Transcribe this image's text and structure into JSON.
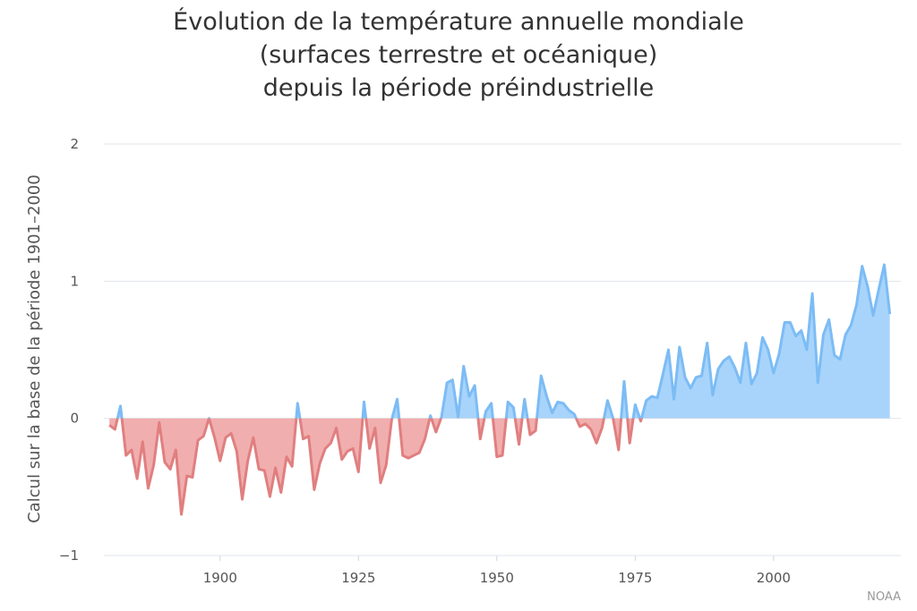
{
  "chart_data": {
    "type": "area",
    "title_lines": [
      "Évolution de la température annuelle mondiale",
      "(surfaces terrestre et océanique)",
      "depuis la période préindustrielle"
    ],
    "xlabel": "",
    "ylabel": "Calcul sur la base de la période 1901–2000",
    "ylim": [
      -1,
      2
    ],
    "yticks": [
      "−1",
      "0",
      "1",
      "2"
    ],
    "xticks": [
      "1900",
      "1925",
      "1950",
      "1975",
      "2000"
    ],
    "xlim": [
      1879,
      2023
    ],
    "grid": true,
    "colors": {
      "positive": "#a8d4fb",
      "positive_line": "#7cbcf5",
      "negative": "#f1aeae",
      "negative_line": "#e07f80"
    },
    "series": [
      {
        "x": [
          1880,
          1881,
          1882,
          1883,
          1884,
          1885,
          1886,
          1887,
          1888,
          1889,
          1890,
          1891,
          1892,
          1893,
          1894,
          1895,
          1896,
          1897,
          1898,
          1899,
          1900,
          1901,
          1902,
          1903,
          1904,
          1905,
          1906,
          1907,
          1908,
          1909,
          1910,
          1911,
          1912,
          1913,
          1914,
          1915,
          1916,
          1917,
          1918,
          1919,
          1920,
          1921,
          1922,
          1923,
          1924,
          1925,
          1926,
          1927,
          1928,
          1929,
          1930,
          1931,
          1932,
          1933,
          1934,
          1935,
          1936,
          1937,
          1938,
          1939,
          1940,
          1941,
          1942,
          1943,
          1944,
          1945,
          1946,
          1947,
          1948,
          1949,
          1950,
          1951,
          1952,
          1953,
          1954,
          1955,
          1956,
          1957,
          1958,
          1959,
          1960,
          1961,
          1962,
          1963,
          1964,
          1965,
          1966,
          1967,
          1968,
          1969,
          1970,
          1971,
          1972,
          1973,
          1974,
          1975,
          1976,
          1977,
          1978,
          1979,
          1980,
          1981,
          1982,
          1983,
          1984,
          1985,
          1986,
          1987,
          1988,
          1989,
          1990,
          1991,
          1992,
          1993,
          1994,
          1995,
          1996,
          1997,
          1998,
          1999,
          2000,
          2001,
          2002,
          2003,
          2004,
          2005,
          2006,
          2007,
          2008,
          2009,
          2010,
          2011,
          2012,
          2013,
          2014,
          2015,
          2016,
          2017,
          2018,
          2019,
          2020,
          2021
        ],
        "values": [
          -0.05,
          -0.08,
          0.09,
          -0.27,
          -0.23,
          -0.44,
          -0.17,
          -0.51,
          -0.34,
          -0.03,
          -0.32,
          -0.37,
          -0.23,
          -0.7,
          -0.42,
          -0.43,
          -0.16,
          -0.13,
          0,
          -0.14,
          -0.31,
          -0.14,
          -0.11,
          -0.24,
          -0.59,
          -0.31,
          -0.14,
          -0.37,
          -0.38,
          -0.57,
          -0.36,
          -0.54,
          -0.28,
          -0.35,
          0.11,
          -0.15,
          -0.13,
          -0.52,
          -0.33,
          -0.22,
          -0.18,
          -0.07,
          -0.3,
          -0.24,
          -0.22,
          -0.39,
          0.12,
          -0.22,
          -0.07,
          -0.47,
          -0.34,
          -0.01,
          0.14,
          -0.27,
          -0.29,
          -0.27,
          -0.25,
          -0.15,
          0.02,
          -0.1,
          0.01,
          0.26,
          0.28,
          0.01,
          0.38,
          0.16,
          0.24,
          -0.15,
          0.05,
          0.11,
          -0.28,
          -0.27,
          0.12,
          0.08,
          -0.19,
          0.14,
          -0.12,
          -0.09,
          0.31,
          0.16,
          0.04,
          0.12,
          0.11,
          0.06,
          0.03,
          -0.06,
          -0.04,
          -0.08,
          -0.18,
          -0.07,
          0.13,
          0,
          -0.23,
          0.27,
          -0.18,
          0.1,
          -0.02,
          0.13,
          0.16,
          0.15,
          0.32,
          0.5,
          0.14,
          0.52,
          0.3,
          0.22,
          0.3,
          0.31,
          0.55,
          0.17,
          0.36,
          0.42,
          0.45,
          0.37,
          0.26,
          0.55,
          0.25,
          0.33,
          0.59,
          0.5,
          0.33,
          0.47,
          0.7,
          0.7,
          0.6,
          0.64,
          0.5,
          0.91,
          0.26,
          0.61,
          0.72,
          0.46,
          0.43,
          0.61,
          0.68,
          0.83,
          1.11,
          0.96,
          0.75,
          0.94,
          1.12,
          0.76
        ]
      }
    ]
  },
  "source": {
    "credit": "NOAA"
  }
}
